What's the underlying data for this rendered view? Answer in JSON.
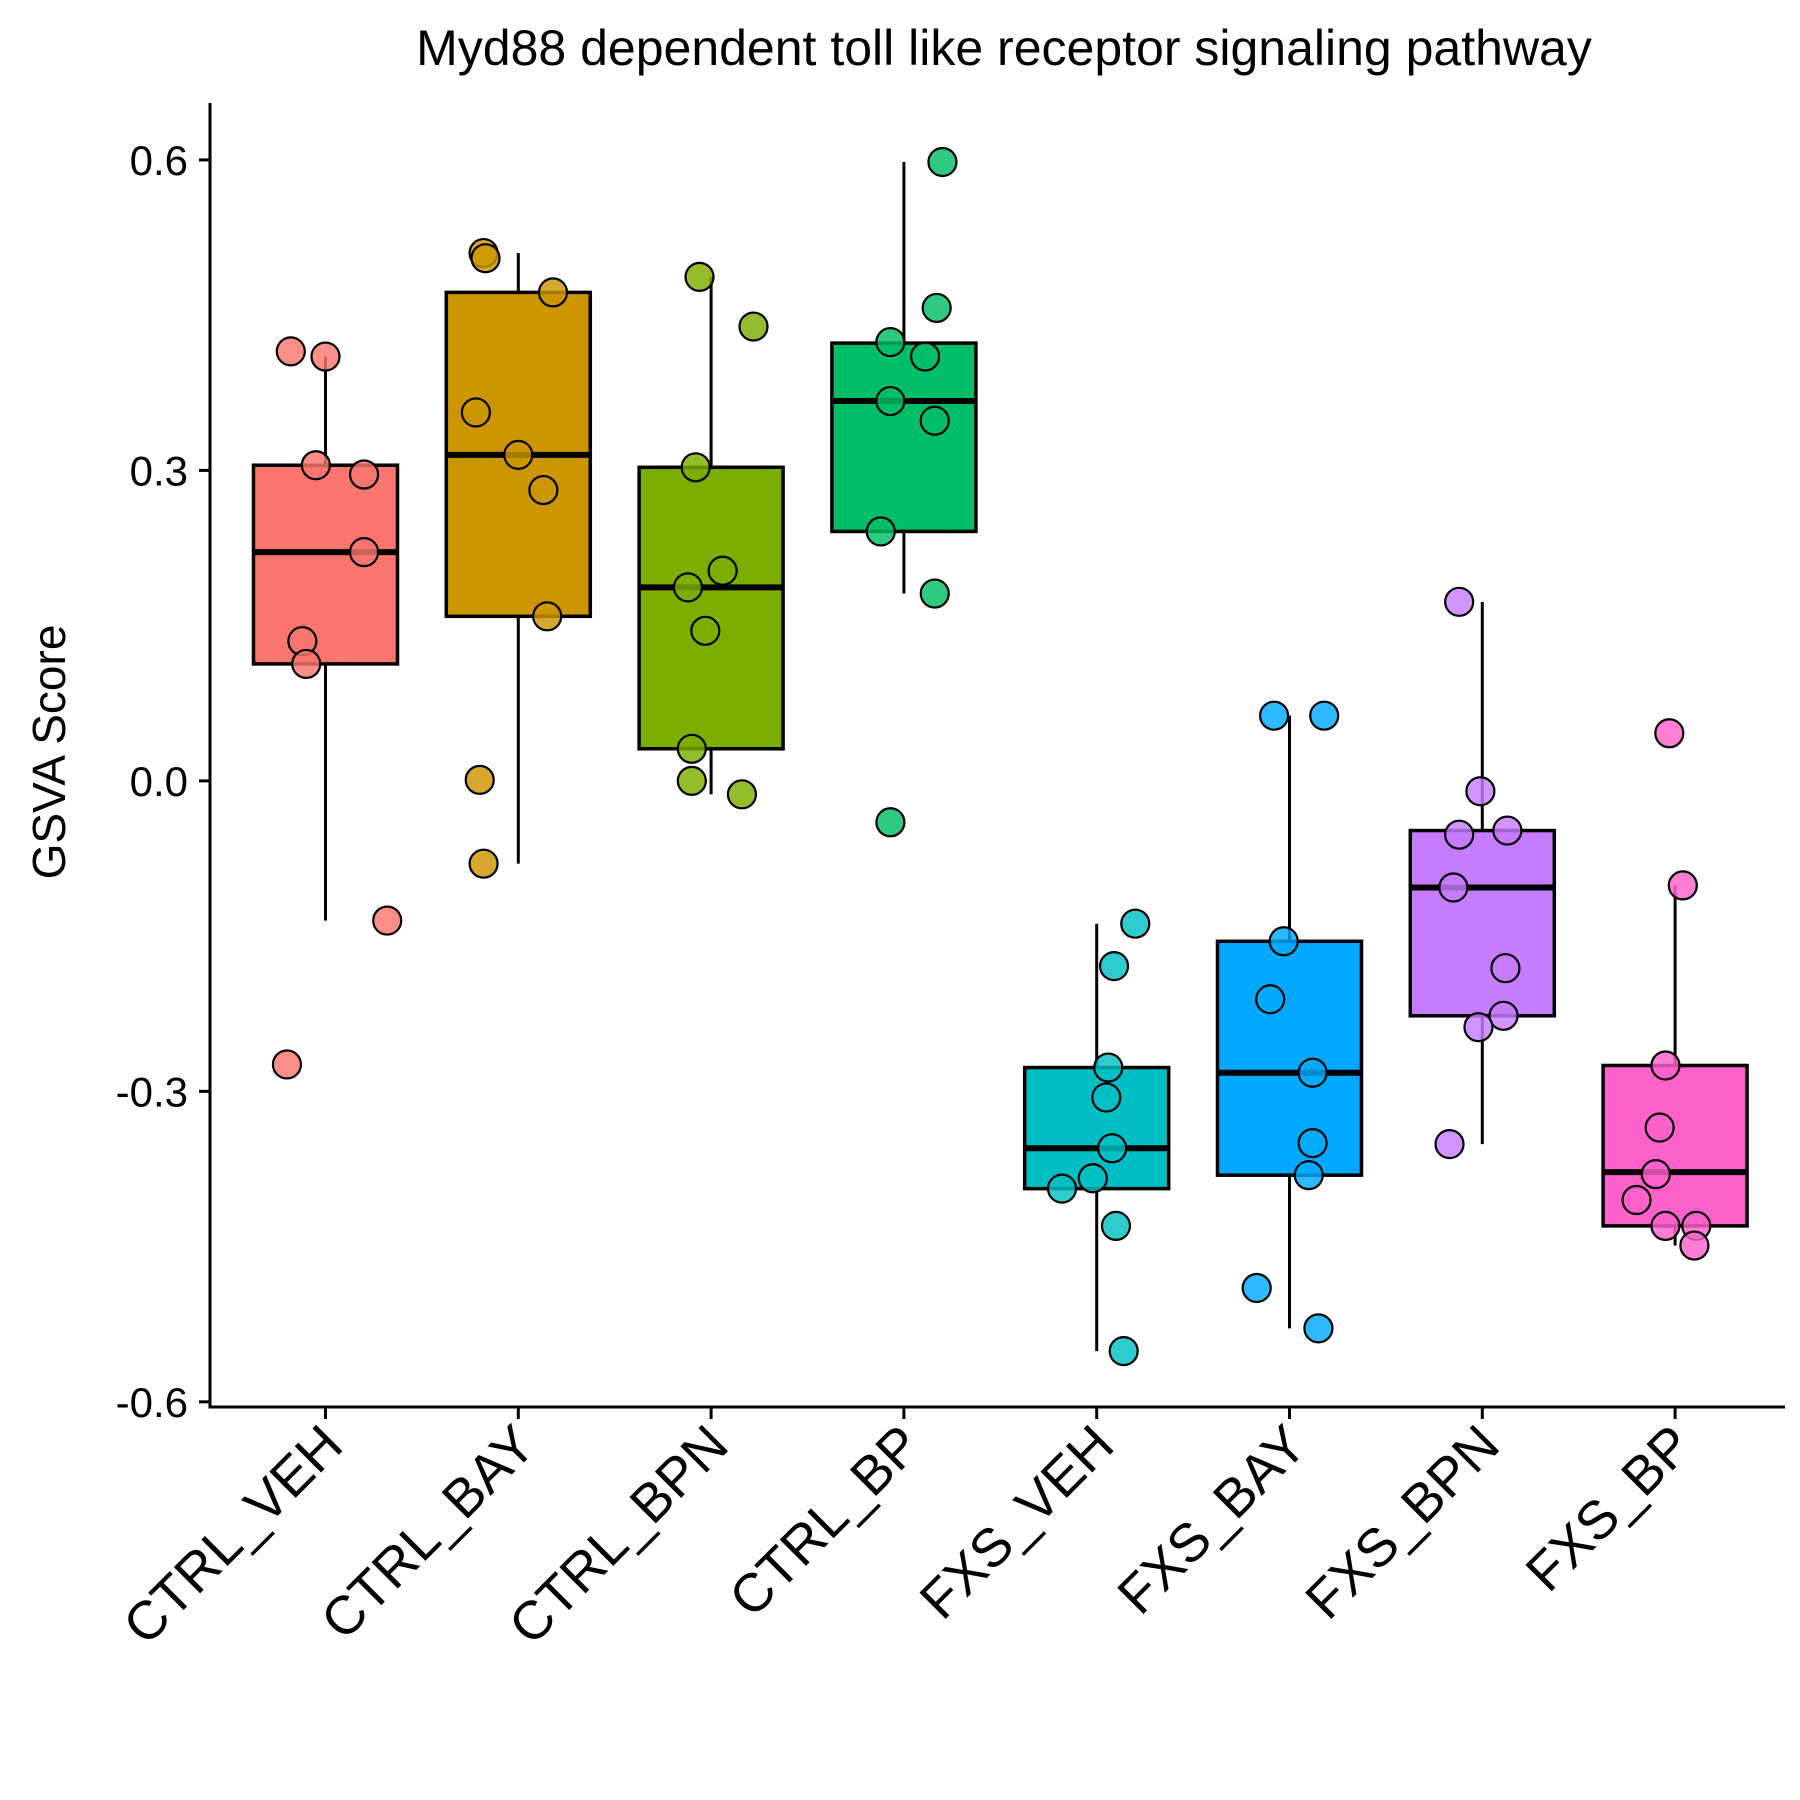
{
  "chart_data": {
    "type": "box",
    "title": "Myd88 dependent toll like receptor signaling pathway",
    "ylabel": "GSVA Score",
    "xlabel": "",
    "ylim": [
      -0.605,
      0.655
    ],
    "yticks": [
      -0.6,
      -0.3,
      0.0,
      0.3,
      0.6
    ],
    "ytick_labels": [
      "-0.6",
      "-0.3",
      "0.0",
      "0.3",
      "0.6"
    ],
    "grid": false,
    "legend": "none",
    "categories": [
      "CTRL_VEH",
      "CTRL_BAY",
      "CTRL_BPN",
      "CTRL_BP",
      "FXS_VEH",
      "FXS_BAY",
      "FXS_BPN",
      "FXS_BP"
    ],
    "colors": [
      "#F8766D",
      "#CD9600",
      "#7CAE00",
      "#00BE67",
      "#00BFC4",
      "#00A9FF",
      "#C77CFF",
      "#FF61CC"
    ],
    "boxes": [
      {
        "name": "CTRL_VEH",
        "whisker_low": -0.135,
        "q1": 0.113,
        "median": 0.221,
        "q3": 0.305,
        "whisker_high": 0.41
      },
      {
        "name": "CTRL_BAY",
        "whisker_low": -0.08,
        "q1": 0.159,
        "median": 0.315,
        "q3": 0.472,
        "whisker_high": 0.51
      },
      {
        "name": "CTRL_BPN",
        "whisker_low": -0.013,
        "q1": 0.031,
        "median": 0.187,
        "q3": 0.303,
        "whisker_high": 0.487
      },
      {
        "name": "CTRL_BP",
        "whisker_low": 0.181,
        "q1": 0.241,
        "median": 0.367,
        "q3": 0.423,
        "whisker_high": 0.598
      },
      {
        "name": "FXS_VEH",
        "whisker_low": -0.551,
        "q1": -0.394,
        "median": -0.355,
        "q3": -0.277,
        "whisker_high": -0.138
      },
      {
        "name": "FXS_BAY",
        "whisker_low": -0.529,
        "q1": -0.381,
        "median": -0.282,
        "q3": -0.155,
        "whisker_high": 0.063
      },
      {
        "name": "FXS_BPN",
        "whisker_low": -0.351,
        "q1": -0.227,
        "median": -0.103,
        "q3": -0.048,
        "whisker_high": 0.173
      },
      {
        "name": "FXS_BP",
        "whisker_low": -0.449,
        "q1": -0.43,
        "median": -0.378,
        "q3": -0.275,
        "whisker_high": -0.101
      }
    ],
    "points": [
      {
        "category": "CTRL_VEH",
        "x": -0.18,
        "y": 0.415
      },
      {
        "category": "CTRL_VEH",
        "x": 0.0,
        "y": 0.41
      },
      {
        "category": "CTRL_VEH",
        "x": -0.05,
        "y": 0.305
      },
      {
        "category": "CTRL_VEH",
        "x": 0.2,
        "y": 0.296
      },
      {
        "category": "CTRL_VEH",
        "x": 0.2,
        "y": 0.221
      },
      {
        "category": "CTRL_VEH",
        "x": -0.12,
        "y": 0.135
      },
      {
        "category": "CTRL_VEH",
        "x": -0.1,
        "y": 0.113
      },
      {
        "category": "CTRL_VEH",
        "x": 0.32,
        "y": -0.135
      },
      {
        "category": "CTRL_VEH",
        "x": -0.2,
        "y": -0.274
      },
      {
        "category": "CTRL_BAY",
        "x": -0.18,
        "y": 0.51
      },
      {
        "category": "CTRL_BAY",
        "x": -0.17,
        "y": 0.505
      },
      {
        "category": "CTRL_BAY",
        "x": 0.18,
        "y": 0.472
      },
      {
        "category": "CTRL_BAY",
        "x": -0.22,
        "y": 0.356
      },
      {
        "category": "CTRL_BAY",
        "x": 0.0,
        "y": 0.315
      },
      {
        "category": "CTRL_BAY",
        "x": 0.13,
        "y": 0.281
      },
      {
        "category": "CTRL_BAY",
        "x": 0.15,
        "y": 0.159
      },
      {
        "category": "CTRL_BAY",
        "x": -0.2,
        "y": 0.001
      },
      {
        "category": "CTRL_BAY",
        "x": -0.18,
        "y": -0.08
      },
      {
        "category": "CTRL_BPN",
        "x": -0.06,
        "y": 0.487
      },
      {
        "category": "CTRL_BPN",
        "x": 0.22,
        "y": 0.439
      },
      {
        "category": "CTRL_BPN",
        "x": -0.08,
        "y": 0.303
      },
      {
        "category": "CTRL_BPN",
        "x": 0.06,
        "y": 0.203
      },
      {
        "category": "CTRL_BPN",
        "x": -0.12,
        "y": 0.187
      },
      {
        "category": "CTRL_BPN",
        "x": -0.03,
        "y": 0.145
      },
      {
        "category": "CTRL_BPN",
        "x": -0.1,
        "y": 0.031
      },
      {
        "category": "CTRL_BPN",
        "x": -0.1,
        "y": 0.0
      },
      {
        "category": "CTRL_BPN",
        "x": 0.16,
        "y": -0.013
      },
      {
        "category": "CTRL_BP",
        "x": 0.2,
        "y": 0.598
      },
      {
        "category": "CTRL_BP",
        "x": 0.17,
        "y": 0.457
      },
      {
        "category": "CTRL_BP",
        "x": -0.07,
        "y": 0.424
      },
      {
        "category": "CTRL_BP",
        "x": 0.11,
        "y": 0.41
      },
      {
        "category": "CTRL_BP",
        "x": -0.07,
        "y": 0.367
      },
      {
        "category": "CTRL_BP",
        "x": 0.16,
        "y": 0.348
      },
      {
        "category": "CTRL_BP",
        "x": -0.12,
        "y": 0.241
      },
      {
        "category": "CTRL_BP",
        "x": 0.16,
        "y": 0.181
      },
      {
        "category": "CTRL_BP",
        "x": -0.07,
        "y": -0.04
      },
      {
        "category": "FXS_VEH",
        "x": 0.2,
        "y": -0.138
      },
      {
        "category": "FXS_VEH",
        "x": 0.09,
        "y": -0.179
      },
      {
        "category": "FXS_VEH",
        "x": 0.06,
        "y": -0.277
      },
      {
        "category": "FXS_VEH",
        "x": 0.05,
        "y": -0.306
      },
      {
        "category": "FXS_VEH",
        "x": 0.08,
        "y": -0.355
      },
      {
        "category": "FXS_VEH",
        "x": -0.02,
        "y": -0.384
      },
      {
        "category": "FXS_VEH",
        "x": -0.18,
        "y": -0.394
      },
      {
        "category": "FXS_VEH",
        "x": 0.1,
        "y": -0.43
      },
      {
        "category": "FXS_VEH",
        "x": 0.14,
        "y": -0.551
      },
      {
        "category": "FXS_BAY",
        "x": -0.08,
        "y": 0.063
      },
      {
        "category": "FXS_BAY",
        "x": 0.18,
        "y": 0.063
      },
      {
        "category": "FXS_BAY",
        "x": -0.03,
        "y": -0.155
      },
      {
        "category": "FXS_BAY",
        "x": -0.1,
        "y": -0.211
      },
      {
        "category": "FXS_BAY",
        "x": 0.12,
        "y": -0.282
      },
      {
        "category": "FXS_BAY",
        "x": 0.12,
        "y": -0.35
      },
      {
        "category": "FXS_BAY",
        "x": 0.1,
        "y": -0.381
      },
      {
        "category": "FXS_BAY",
        "x": -0.17,
        "y": -0.49
      },
      {
        "category": "FXS_BAY",
        "x": 0.15,
        "y": -0.529
      },
      {
        "category": "FXS_BPN",
        "x": -0.12,
        "y": 0.173
      },
      {
        "category": "FXS_BPN",
        "x": -0.01,
        "y": -0.01
      },
      {
        "category": "FXS_BPN",
        "x": -0.12,
        "y": -0.052
      },
      {
        "category": "FXS_BPN",
        "x": 0.13,
        "y": -0.048
      },
      {
        "category": "FXS_BPN",
        "x": -0.15,
        "y": -0.103
      },
      {
        "category": "FXS_BPN",
        "x": 0.12,
        "y": -0.181
      },
      {
        "category": "FXS_BPN",
        "x": 0.11,
        "y": -0.227
      },
      {
        "category": "FXS_BPN",
        "x": -0.02,
        "y": -0.238
      },
      {
        "category": "FXS_BPN",
        "x": -0.17,
        "y": -0.351
      },
      {
        "category": "FXS_BP",
        "x": -0.03,
        "y": 0.046
      },
      {
        "category": "FXS_BP",
        "x": 0.04,
        "y": -0.101
      },
      {
        "category": "FXS_BP",
        "x": -0.05,
        "y": -0.275
      },
      {
        "category": "FXS_BP",
        "x": -0.08,
        "y": -0.335
      },
      {
        "category": "FXS_BP",
        "x": -0.1,
        "y": -0.38
      },
      {
        "category": "FXS_BP",
        "x": -0.2,
        "y": -0.405
      },
      {
        "category": "FXS_BP",
        "x": -0.05,
        "y": -0.43
      },
      {
        "category": "FXS_BP",
        "x": 0.11,
        "y": -0.43
      },
      {
        "category": "FXS_BP",
        "x": 0.1,
        "y": -0.449
      }
    ]
  }
}
